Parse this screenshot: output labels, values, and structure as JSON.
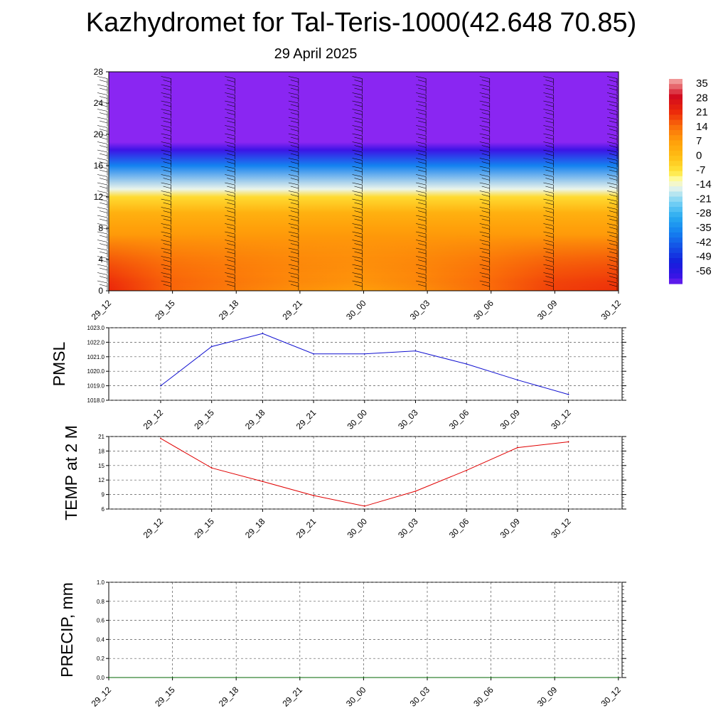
{
  "header": {
    "title": "Kazhydromet for Tal-Teris-1000(42.648 70.85)",
    "subtitle": "29 April 2025"
  },
  "chart_data": [
    {
      "type": "heatmap",
      "name": "temperature-cross-section",
      "x_ticks": [
        "29_12",
        "29_15",
        "29_18",
        "29_21",
        "30_00",
        "30_03",
        "30_06",
        "30_09",
        "30_12"
      ],
      "y_ticks": [
        0,
        4,
        8,
        12,
        16,
        20,
        24,
        28
      ],
      "ylim": [
        0,
        28
      ],
      "colorbar": {
        "labels": [
          "35",
          "28",
          "21",
          "14",
          "7",
          "0",
          "-7",
          "-14",
          "-21",
          "-28",
          "-35",
          "-42",
          "-49",
          "-56"
        ]
      },
      "profile_levels": [
        0,
        2,
        5,
        8,
        10,
        12,
        13,
        16,
        18,
        19,
        28
      ],
      "profile_values": [
        20,
        14,
        10,
        7,
        3,
        -5,
        -14,
        -35,
        -56,
        -60,
        -60
      ],
      "surface_temp": [
        21,
        14.5,
        11.5,
        8.5,
        6.5,
        9.5,
        14,
        18.5,
        20
      ]
    },
    {
      "type": "line",
      "name": "pmsl",
      "ylabel": "PMSL",
      "x": [
        "29_12",
        "29_15",
        "29_18",
        "29_21",
        "30_00",
        "30_03",
        "30_06",
        "30_09",
        "30_12"
      ],
      "values": [
        1019.0,
        1021.7,
        1022.6,
        1021.2,
        1021.2,
        1021.4,
        1020.5,
        1019.4,
        1018.4
      ],
      "ylim": [
        1018.0,
        1023.0
      ],
      "y_ticks": [
        "1018.0",
        "1019.0",
        "1020.0",
        "1021.0",
        "1022.0",
        "1023.0"
      ],
      "color": "#1010d0",
      "grid": true
    },
    {
      "type": "line",
      "name": "temp-2m",
      "ylabel": "TEMP at 2 M",
      "x": [
        "29_12",
        "29_15",
        "29_18",
        "29_21",
        "30_00",
        "30_03",
        "30_06",
        "30_09",
        "30_12"
      ],
      "values": [
        20.6,
        14.5,
        11.7,
        8.8,
        6.6,
        9.7,
        14.0,
        18.7,
        19.9
      ],
      "ylim": [
        6,
        21
      ],
      "y_ticks": [
        "6",
        "9",
        "12",
        "15",
        "18",
        "21"
      ],
      "color": "#e00000",
      "grid": true
    },
    {
      "type": "line",
      "name": "precip",
      "ylabel": "PRECIP, mm",
      "x": [
        "29_12",
        "29_15",
        "29_18",
        "29_21",
        "30_00",
        "30_03",
        "30_06",
        "30_09",
        "30_12"
      ],
      "values": [
        0,
        0,
        0,
        0,
        0,
        0,
        0,
        0,
        0
      ],
      "ylim": [
        0.0,
        1.0
      ],
      "y_ticks": [
        "0.0",
        "0.2",
        "0.4",
        "0.6",
        "0.8",
        "1.0"
      ],
      "color": "#006400",
      "grid": true
    }
  ]
}
